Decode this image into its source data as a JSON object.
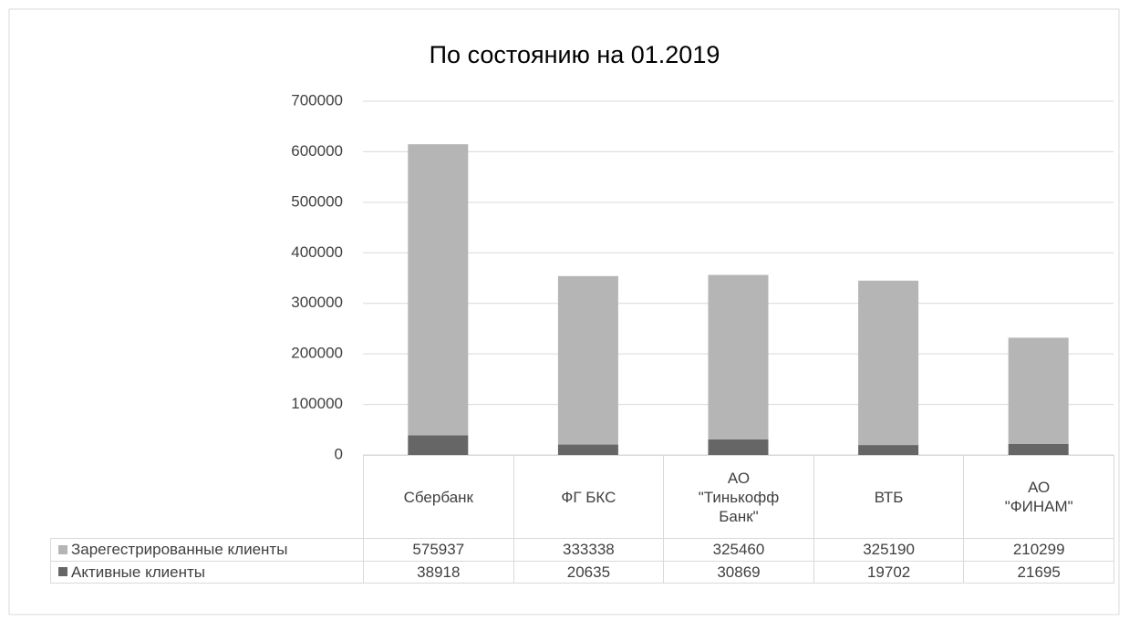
{
  "chart_data": {
    "type": "stacked_bar",
    "title": "По состоянию на 01.2019",
    "categories": [
      "Сбербанк",
      "ФГ БКС",
      "АО \"Тинькофф Банк\"",
      "ВТБ",
      "АО \"ФИНАМ\""
    ],
    "series": [
      {
        "name": "Зарегестрированные клиенты",
        "color": "#b5b5b5",
        "values": [
          575937,
          333338,
          325460,
          325190,
          210299
        ]
      },
      {
        "name": "Активные клиенты",
        "color": "#666666",
        "values": [
          38918,
          20635,
          30869,
          19702,
          21695
        ]
      }
    ],
    "stack_order": [
      1,
      0
    ],
    "ylim": [
      0,
      700000
    ],
    "yticks": [
      0,
      100000,
      200000,
      300000,
      400000,
      500000,
      600000,
      700000
    ],
    "grid": true
  }
}
